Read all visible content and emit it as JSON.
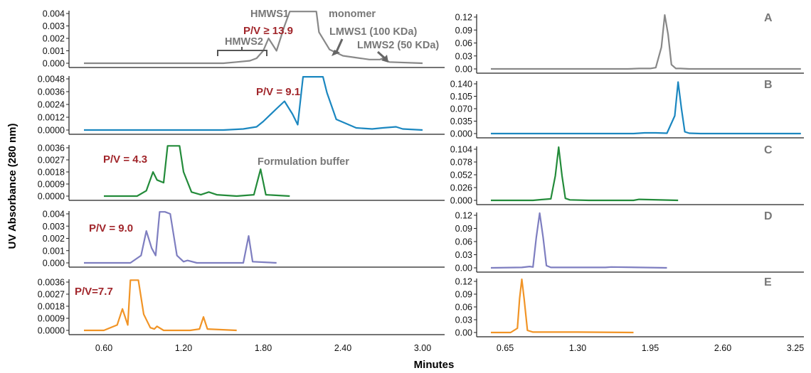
{
  "chart_data": {
    "type": "line",
    "ylabel": "UV Absorbance (280 nm)",
    "xlabel": "Minutes",
    "left": {
      "x_ticks": [
        "0.60",
        "1.20",
        "1.80",
        "2.40",
        "3.00"
      ],
      "panels": [
        {
          "panel": "A",
          "color": "#888888",
          "yticks": [
            "0.004",
            "0.003",
            "0.002",
            "0.001",
            "0.000"
          ],
          "pv_label": "P/V ≥ 13.9",
          "x": [
            0.45,
            1.5,
            1.6,
            1.7,
            1.75,
            1.8,
            1.84,
            1.9,
            1.96,
            2.0,
            2.02,
            2.05,
            2.2,
            2.22,
            2.3,
            2.4,
            2.6,
            2.68,
            2.7,
            2.75,
            3.0
          ],
          "y": [
            0.0,
            0.0,
            0.0001,
            0.0002,
            0.0004,
            0.001,
            0.002,
            0.001,
            0.003,
            0.006,
            0.006,
            0.006,
            0.006,
            0.0025,
            0.0011,
            0.0006,
            0.0003,
            0.0003,
            0.0004,
            0.0001,
            0.0
          ]
        },
        {
          "panel": "B",
          "color": "#1b87c0",
          "yticks": [
            "0.0048",
            "0.0036",
            "0.0024",
            "0.0012",
            "0.0000"
          ],
          "pv_label": "P/V = 9.1",
          "x": [
            0.45,
            1.5,
            1.65,
            1.75,
            1.8,
            1.9,
            1.96,
            2.02,
            2.06,
            2.1,
            2.15,
            2.25,
            2.28,
            2.35,
            2.5,
            2.62,
            2.7,
            2.8,
            2.85,
            3.0
          ],
          "y": [
            0.0,
            0.0,
            0.0001,
            0.0003,
            0.0008,
            0.002,
            0.0027,
            0.0015,
            0.0005,
            0.005,
            0.005,
            0.005,
            0.0035,
            0.001,
            0.0002,
            0.0001,
            0.0002,
            0.0003,
            0.0001,
            0.0
          ]
        },
        {
          "panel": "C",
          "color": "#238b3a",
          "yticks": [
            "0.0036",
            "0.0027",
            "0.0018",
            "0.0009",
            "0.0000"
          ],
          "pv_label": "P/V = 4.3",
          "x": [
            0.6,
            0.85,
            0.92,
            0.97,
            1.0,
            1.05,
            1.08,
            1.1,
            1.17,
            1.2,
            1.26,
            1.33,
            1.39,
            1.45,
            1.6,
            1.73,
            1.78,
            1.82,
            2.0
          ],
          "y": [
            0.0,
            0.0,
            0.0004,
            0.0018,
            0.0012,
            0.001,
            0.004,
            0.004,
            0.004,
            0.0018,
            0.0003,
            0.0001,
            0.0003,
            0.0001,
            0.0,
            0.0001,
            0.002,
            0.0001,
            0.0
          ]
        },
        {
          "panel": "D",
          "color": "#7e7ec0",
          "yticks": [
            "0.004",
            "0.003",
            "0.002",
            "0.001",
            "0.000"
          ],
          "pv_label": "P/V = 9.0",
          "x": [
            0.45,
            0.8,
            0.88,
            0.92,
            0.96,
            0.99,
            1.02,
            1.06,
            1.1,
            1.15,
            1.2,
            1.23,
            1.3,
            1.5,
            1.65,
            1.69,
            1.72,
            1.9
          ],
          "y": [
            0.0,
            0.0,
            0.0006,
            0.0026,
            0.0012,
            0.0006,
            0.0045,
            0.0045,
            0.004,
            0.0006,
            0.0001,
            0.0002,
            0.0,
            0.0,
            0.0,
            0.0022,
            0.0001,
            0.0
          ]
        },
        {
          "panel": "E",
          "color": "#f19426",
          "yticks": [
            "0.0036",
            "0.0027",
            "0.0018",
            "0.0009",
            "0.0000"
          ],
          "pv_label": "P/V=7.7",
          "x": [
            0.45,
            0.6,
            0.7,
            0.74,
            0.78,
            0.8,
            0.83,
            0.86,
            0.9,
            0.95,
            0.98,
            1.0,
            1.05,
            1.25,
            1.32,
            1.35,
            1.38,
            1.6
          ],
          "y": [
            0.0,
            0.0,
            0.0004,
            0.0016,
            0.0004,
            0.004,
            0.004,
            0.004,
            0.0012,
            0.0002,
            0.0001,
            0.0003,
            0.0,
            0.0,
            0.0001,
            0.001,
            0.0001,
            0.0
          ]
        }
      ],
      "annotations": [
        "HMWS1",
        "HMWS2",
        "monomer",
        "LMWS1 (100 KDa)",
        "LMWS2 (50 KDa)",
        "Formulation buffer"
      ]
    },
    "right": {
      "x_ticks": [
        "0.65",
        "1.30",
        "1.95",
        "2.60",
        "3.25"
      ],
      "panels": [
        {
          "panel": "A",
          "color": "#888888",
          "yticks": [
            "0.12",
            "0.09",
            "0.06",
            "0.03",
            "0.00"
          ],
          "x": [
            0.1,
            1.75,
            1.85,
            1.95,
            2.0,
            2.05,
            2.08,
            2.11,
            2.14,
            2.18,
            2.22,
            2.3,
            3.3
          ],
          "y": [
            0.0,
            0.0,
            0.001,
            0.001,
            0.003,
            0.05,
            0.13,
            0.08,
            0.01,
            0.001,
            0.001,
            0.0,
            0.0
          ]
        },
        {
          "panel": "B",
          "color": "#1b87c0",
          "yticks": [
            "0.140",
            "0.105",
            "0.070",
            "0.035",
            "0.000"
          ],
          "x": [
            0.1,
            1.8,
            1.9,
            2.0,
            2.1,
            2.17,
            2.2,
            2.23,
            2.26,
            2.3,
            2.4,
            3.3
          ],
          "y": [
            0.0,
            0.0,
            0.002,
            0.002,
            0.001,
            0.05,
            0.145,
            0.07,
            0.005,
            0.001,
            0.0,
            0.0
          ]
        },
        {
          "panel": "C",
          "color": "#238b3a",
          "yticks": [
            "0.104",
            "0.078",
            "0.052",
            "0.026",
            "0.000"
          ],
          "x": [
            0.1,
            0.9,
            1.0,
            1.06,
            1.1,
            1.13,
            1.16,
            1.19,
            1.23,
            1.4,
            1.8,
            1.85,
            2.2
          ],
          "y": [
            0.0,
            0.0,
            0.002,
            0.003,
            0.05,
            0.112,
            0.05,
            0.004,
            0.001,
            0.0,
            0.0,
            0.002,
            0.0
          ]
        },
        {
          "panel": "D",
          "color": "#7e7ec0",
          "yticks": [
            "0.12",
            "0.09",
            "0.06",
            "0.03",
            "0.00"
          ],
          "x": [
            0.1,
            0.8,
            0.87,
            0.9,
            0.93,
            0.96,
            0.99,
            1.02,
            1.06,
            1.2,
            1.55,
            1.6,
            2.1
          ],
          "y": [
            0.0,
            0.001,
            0.003,
            0.002,
            0.07,
            0.133,
            0.07,
            0.005,
            0.001,
            0.001,
            0.001,
            0.002,
            0.0
          ]
        },
        {
          "panel": "E",
          "color": "#f19426",
          "yticks": [
            "0.12",
            "0.09",
            "0.06",
            "0.03",
            "0.00"
          ],
          "x": [
            0.1,
            0.7,
            0.76,
            0.78,
            0.8,
            0.82,
            0.85,
            0.9,
            1.3,
            1.8
          ],
          "y": [
            0.0,
            0.0,
            0.01,
            0.08,
            0.125,
            0.08,
            0.005,
            0.001,
            0.001,
            0.0
          ]
        }
      ]
    }
  }
}
